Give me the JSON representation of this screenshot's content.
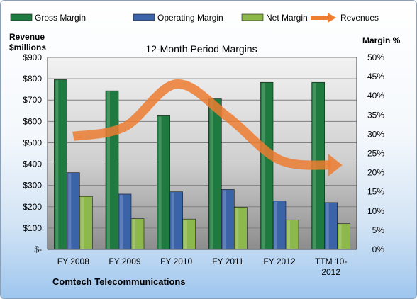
{
  "chart_data": {
    "type": "bar",
    "title": "12-Month Period Margins",
    "left_axis_title": [
      "Revenue",
      "$millions"
    ],
    "right_axis_title": "Margin %",
    "footer_label": "Comtech Telecommunications",
    "categories": [
      [
        "FY 2008"
      ],
      [
        "FY 2009"
      ],
      [
        "FY 2010"
      ],
      [
        "FY 2011"
      ],
      [
        "FY 2012"
      ],
      [
        "TTM 10-",
        "2012"
      ]
    ],
    "left_ticks": [
      "$-",
      "$100",
      "$200",
      "$300",
      "$400",
      "$500",
      "$600",
      "$700",
      "$800",
      "$900"
    ],
    "right_ticks": [
      "0%",
      "5%",
      "10%",
      "15%",
      "20%",
      "25%",
      "30%",
      "35%",
      "40%",
      "45%",
      "50%"
    ],
    "ylim_left": [
      0,
      900
    ],
    "ylim_right": [
      0,
      50
    ],
    "legend_position": "top",
    "series": [
      {
        "name": "Gross Margin",
        "axis": "right",
        "kind": "bar",
        "color": "#1e7a3e",
        "values": [
          44.2,
          41.3,
          34.8,
          39.2,
          43.5,
          43.5
        ]
      },
      {
        "name": "Operating Margin",
        "axis": "right",
        "kind": "bar",
        "color": "#3b63a8",
        "values": [
          20.0,
          14.4,
          15.0,
          15.6,
          12.6,
          12.2
        ]
      },
      {
        "name": "Net Margin",
        "axis": "right",
        "kind": "bar",
        "color": "#8db84c",
        "values": [
          13.8,
          8.0,
          7.9,
          11.0,
          7.7,
          6.7
        ]
      },
      {
        "name": "Revenues",
        "axis": "left",
        "kind": "line",
        "color": "#ed7d31",
        "values": [
          530,
          575,
          775,
          620,
          420,
          395
        ]
      }
    ]
  }
}
